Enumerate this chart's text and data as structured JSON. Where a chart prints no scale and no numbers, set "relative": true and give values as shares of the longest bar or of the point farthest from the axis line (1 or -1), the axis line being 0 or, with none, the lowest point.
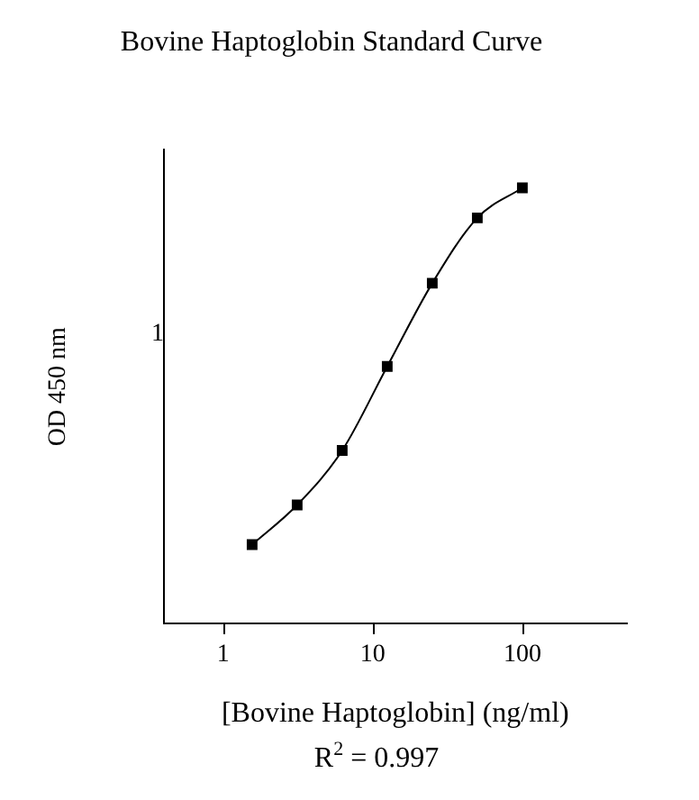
{
  "chart_data": {
    "type": "line",
    "title": "Bovine Haptoglobin Standard Curve",
    "xlabel": "[Bovine Haptoglobin] (ng/ml)",
    "ylabel": "OD 450 nm",
    "annotations": [
      "1",
      "R$^{2}$ = 0.997"
    ],
    "x": [
      1.5625,
      3.125,
      6.25,
      12.5,
      25,
      50,
      100
    ],
    "series": [
      {
        "color": "#000000",
        "values": [
          0.181,
          0.272,
          0.397,
          0.59,
          0.781,
          0.931,
          1
        ]
      }
    ],
    "relative": true,
    "log": "x",
    "grid": false,
    "legend": false,
    "marker": "square",
    "line_style": "solid",
    "xlim": [
      0.4,
      500
    ],
    "xticks": [
      1,
      10,
      100
    ]
  }
}
